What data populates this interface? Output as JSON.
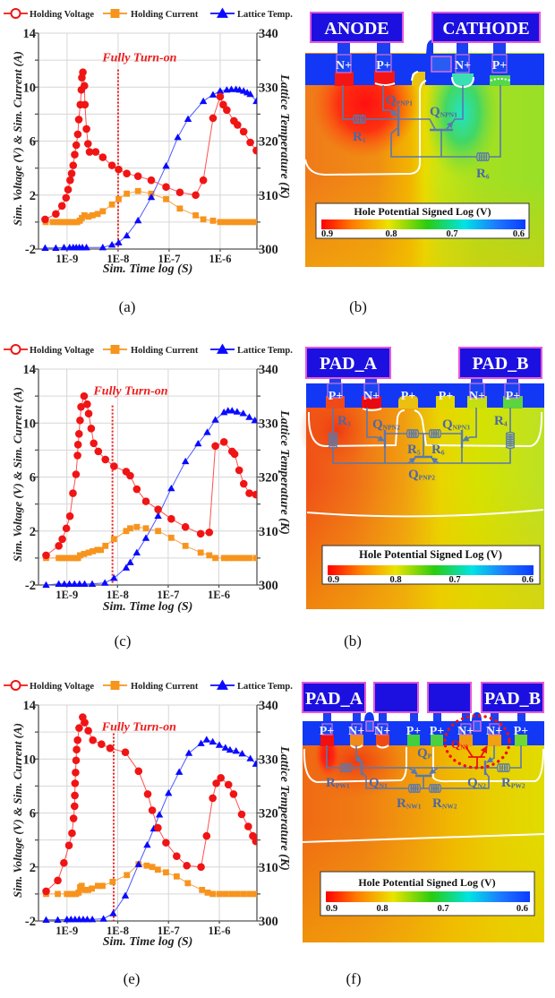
{
  "figure": {
    "captions": [
      "(a)",
      "(b)",
      "(c)",
      "(b)",
      "(e)",
      "(f)"
    ]
  },
  "chart_data": [
    {
      "panel": "a",
      "type": "line",
      "title": "",
      "xlabel": "Sim. Time log (S)",
      "ylabel": "Sim. Voltage (V) & Sim. Current (A)",
      "y2label": "Lattice Temperature (K)",
      "x_scale": "log10 seconds",
      "xlim": [
        -9.56,
        -5.28
      ],
      "xticks": [
        -9,
        -8,
        -7,
        -6
      ],
      "xtick_labels": [
        "1E-9",
        "1E-8",
        "1E-7",
        "1E-6"
      ],
      "ylim": [
        -2,
        14
      ],
      "yticks_left": [
        14,
        10,
        6,
        2,
        -2
      ],
      "y2lim": [
        300,
        340
      ],
      "yticks_right": [
        340,
        330,
        320,
        310,
        300
      ],
      "grid": true,
      "grid_step": 2,
      "legend_position": "top",
      "annotation": {
        "text": "Fully Turn-on",
        "line_x_log10": -8.0,
        "line_y_top": 11.3,
        "text_x_log10": -7.58,
        "text_y": 11.9
      },
      "series": [
        {
          "name": "Holding Voltage",
          "axis": "left",
          "marker": "circle",
          "color": "#f01414",
          "line_color": "#ff5050",
          "x": [
            -9.43,
            -9.22,
            -9.1,
            -9.02,
            -8.98,
            -8.94,
            -8.91,
            -8.88,
            -8.85,
            -8.82,
            -8.79,
            -8.77,
            -8.74,
            -8.72,
            -8.71,
            -8.69,
            -8.66,
            -8.65,
            -8.62,
            -8.59,
            -8.56,
            -8.44,
            -8.3,
            -8.12,
            -7.99,
            -7.83,
            -7.61,
            -7.35,
            -7.06,
            -6.79,
            -6.48,
            -6.33,
            -6.14,
            -6.0,
            -5.94,
            -5.87,
            -5.73,
            -5.66,
            -5.54,
            -5.41,
            -5.29
          ],
          "y": [
            0.2,
            0.6,
            1.2,
            1.8,
            2.4,
            3.1,
            3.6,
            4.2,
            5.0,
            5.7,
            6.5,
            7.6,
            8.7,
            9.8,
            10.7,
            11.1,
            10.1,
            8.7,
            6.9,
            5.8,
            5.2,
            5.2,
            4.8,
            4.2,
            3.9,
            3.6,
            3.4,
            3.1,
            2.6,
            2.2,
            2.0,
            3.1,
            7.7,
            9.3,
            8.7,
            8.3,
            7.5,
            7.2,
            6.7,
            5.9,
            5.3
          ]
        },
        {
          "name": "Holding Current",
          "axis": "left",
          "marker": "square",
          "color": "#f7941d",
          "line_color": "#f7a24a",
          "x": [
            -9.42,
            -9.28,
            -9.17,
            -9.1,
            -9.04,
            -8.98,
            -8.92,
            -8.86,
            -8.8,
            -8.75,
            -8.71,
            -8.66,
            -8.58,
            -8.5,
            -8.4,
            -8.3,
            -8.12,
            -7.99,
            -7.83,
            -7.61,
            -7.35,
            -7.06,
            -6.79,
            -6.48,
            -6.33,
            -6.14,
            -6.0,
            -5.9,
            -5.8,
            -5.7,
            -5.6,
            -5.5,
            -5.4,
            -5.29
          ],
          "y": [
            0,
            0,
            0,
            0,
            0,
            0,
            0,
            0,
            0,
            0.1,
            0.3,
            0.5,
            0.4,
            0.5,
            0.6,
            0.8,
            1.3,
            1.7,
            2.1,
            2.3,
            2.1,
            1.7,
            1.0,
            0.5,
            0.2,
            0.1,
            0,
            0,
            0,
            0,
            0,
            0,
            0,
            0
          ]
        },
        {
          "name": "Lattice Temp.",
          "axis": "right",
          "marker": "triangle",
          "color": "#0a0aff",
          "line_color": "#4a58ff",
          "x": [
            -9.43,
            -9.22,
            -9.06,
            -8.95,
            -8.88,
            -8.82,
            -8.76,
            -8.7,
            -8.62,
            -8.3,
            -8.12,
            -7.99,
            -7.83,
            -7.61,
            -7.35,
            -7.06,
            -6.83,
            -6.63,
            -6.33,
            -6.14,
            -6.0,
            -5.87,
            -5.78,
            -5.69,
            -5.62,
            -5.54,
            -5.47,
            -5.41,
            -5.29
          ],
          "y": [
            300.2,
            300.2,
            300.3,
            300.3,
            300.3,
            300.3,
            300.3,
            300.3,
            300.3,
            300.3,
            300.8,
            301.2,
            302.5,
            305.3,
            309.6,
            315.4,
            320.7,
            324.1,
            327.4,
            328.6,
            329.3,
            329.5,
            329.6,
            329.6,
            329.5,
            329.3,
            329.0,
            328.7,
            327.4
          ]
        }
      ]
    },
    {
      "panel": "c",
      "type": "line",
      "title": "",
      "xlabel": "Sim. Time log (S)",
      "ylabel": "Sim. Voltage (V) & Sim. Current (A)",
      "y2label": "Lattice Temperature (K)",
      "x_scale": "log10 seconds",
      "xlim": [
        -9.56,
        -5.25
      ],
      "xticks": [
        -9,
        -8,
        -7,
        -6
      ],
      "xtick_labels": [
        "1E-9",
        "1E-8",
        "1E-7",
        "1E-6"
      ],
      "ylim": [
        -2,
        14
      ],
      "yticks_left": [
        14,
        10,
        6,
        2,
        -2
      ],
      "y2lim": [
        300,
        340
      ],
      "yticks_right": [
        340,
        330,
        320,
        310,
        300
      ],
      "grid": true,
      "grid_step": 2,
      "legend_position": "top",
      "annotation": {
        "text": "Fully Turn-on",
        "line_x_log10": -8.1,
        "line_y_top": 11.3,
        "text_x_log10": -7.74,
        "text_y": 12.1
      },
      "series": [
        {
          "name": "Holding Voltage",
          "axis": "left",
          "marker": "circle",
          "color": "#f01414",
          "line_color": "#ff5050",
          "x": [
            -9.41,
            -9.16,
            -9.09,
            -9.01,
            -8.94,
            -8.88,
            -8.82,
            -8.79,
            -8.78,
            -8.76,
            -8.74,
            -8.72,
            -8.66,
            -8.6,
            -8.57,
            -8.52,
            -8.47,
            -8.38,
            -8.24,
            -8.07,
            -7.83,
            -7.75,
            -7.62,
            -7.44,
            -7.2,
            -6.94,
            -6.66,
            -6.36,
            -6.19,
            -6.07,
            -5.9,
            -5.74,
            -5.69,
            -5.6,
            -5.51,
            -5.4,
            -5.27
          ],
          "y": [
            0.2,
            0.9,
            1.4,
            2.2,
            3.1,
            4.8,
            6.2,
            7.6,
            8.4,
            9.2,
            10.2,
            11.2,
            12.0,
            11.4,
            10.7,
            9.6,
            8.5,
            7.9,
            7.3,
            6.8,
            6.4,
            6.1,
            5.1,
            4.2,
            3.6,
            2.9,
            2.3,
            1.8,
            1.9,
            8.3,
            8.6,
            7.9,
            7.7,
            6.5,
            5.5,
            4.8,
            4.7
          ]
        },
        {
          "name": "Holding Current",
          "axis": "left",
          "marker": "square",
          "color": "#f7941d",
          "line_color": "#f7a24a",
          "x": [
            -9.41,
            -9.16,
            -9.09,
            -9.02,
            -8.95,
            -8.88,
            -8.82,
            -8.78,
            -8.74,
            -8.66,
            -8.57,
            -8.49,
            -8.4,
            -8.33,
            -8.24,
            -8.07,
            -7.83,
            -7.75,
            -7.62,
            -7.44,
            -7.2,
            -6.94,
            -6.66,
            -6.36,
            -6.19,
            -6.07,
            -5.9,
            -5.8,
            -5.7,
            -5.6,
            -5.5,
            -5.4,
            -5.27
          ],
          "y": [
            0,
            0,
            0,
            0,
            0,
            0,
            0,
            0,
            0.2,
            0.3,
            0.4,
            0.5,
            0.6,
            0.6,
            0.9,
            1.4,
            2.0,
            2.2,
            2.3,
            2.2,
            2.0,
            1.5,
            0.9,
            0.4,
            0.2,
            0,
            0,
            0,
            0,
            0,
            0,
            0,
            0
          ]
        },
        {
          "name": "Lattice Temp.",
          "axis": "right",
          "marker": "triangle",
          "color": "#0a0aff",
          "line_color": "#4a58ff",
          "x": [
            -9.41,
            -9.16,
            -9.05,
            -8.95,
            -8.85,
            -8.75,
            -8.65,
            -8.5,
            -8.25,
            -8.07,
            -7.83,
            -7.75,
            -7.62,
            -7.44,
            -7.2,
            -6.94,
            -6.66,
            -6.41,
            -6.23,
            -6.07,
            -5.9,
            -5.82,
            -5.74,
            -5.64,
            -5.52,
            -5.4,
            -5.29
          ],
          "y": [
            300.0,
            300.2,
            300.2,
            300.2,
            300.2,
            300.2,
            300.2,
            300.2,
            300.4,
            301.3,
            303.2,
            304.2,
            306.0,
            308.7,
            312.8,
            317.9,
            322.9,
            326.2,
            328.3,
            330.6,
            332.0,
            332.3,
            332.3,
            332.1,
            331.8,
            331.1,
            330.5
          ]
        }
      ]
    },
    {
      "panel": "e",
      "type": "line",
      "title": "",
      "xlabel": "Sim. Time log (S)",
      "ylabel": "Sim. Voltage (V) & Sim. Current (A)",
      "y2label": "Lattice Temperature (K)",
      "x_scale": "log10 seconds",
      "xlim": [
        -9.56,
        -5.26
      ],
      "xticks": [
        -9,
        -8,
        -7,
        -6
      ],
      "xtick_labels": [
        "1E-9",
        "1E-8",
        "1E-7",
        "1E-6"
      ],
      "ylim": [
        -2,
        14
      ],
      "yticks_left": [
        14,
        10,
        6,
        2,
        -2
      ],
      "y2lim": [
        300,
        340
      ],
      "yticks_right": [
        340,
        330,
        320,
        310,
        300
      ],
      "grid": true,
      "grid_step": 2,
      "legend_position": "top",
      "annotation": {
        "text": "Fully Turn-on",
        "line_x_log10": -8.08,
        "line_y_top": 11.9,
        "text_x_log10": -7.58,
        "text_y": 12.1
      },
      "series": [
        {
          "name": "Holding Voltage",
          "axis": "left",
          "marker": "circle",
          "color": "#f01414",
          "line_color": "#ff5050",
          "x": [
            -9.41,
            -9.18,
            -9.06,
            -8.96,
            -8.9,
            -8.87,
            -8.85,
            -8.845,
            -8.84,
            -8.83,
            -8.82,
            -8.81,
            -8.79,
            -8.76,
            -8.69,
            -8.65,
            -8.58,
            -8.49,
            -8.32,
            -8.15,
            -7.85,
            -7.59,
            -7.41,
            -7.32,
            -7.21,
            -7.05,
            -6.84,
            -6.64,
            -6.36,
            -6.25,
            -6.13,
            -6.06,
            -5.97,
            -5.82,
            -5.72,
            -5.56,
            -5.43,
            -5.34,
            -5.28
          ],
          "y": [
            0.2,
            1.0,
            2.3,
            3.6,
            4.5,
            5.6,
            6.5,
            7.3,
            8.2,
            9.0,
            9.9,
            10.7,
            11.4,
            12.3,
            13.1,
            12.7,
            12.1,
            11.4,
            11.1,
            10.8,
            10.5,
            9.1,
            7.4,
            6.2,
            4.9,
            3.8,
            2.8,
            2.1,
            2.0,
            4.3,
            7.1,
            8.2,
            8.6,
            8.1,
            7.4,
            5.9,
            5.0,
            4.3,
            3.9
          ]
        },
        {
          "name": "Holding Current",
          "axis": "left",
          "marker": "square",
          "color": "#f7941d",
          "line_color": "#f7a24a",
          "x": [
            -9.41,
            -9.18,
            -9.0,
            -8.94,
            -8.88,
            -8.82,
            -8.77,
            -8.74,
            -8.71,
            -8.65,
            -8.58,
            -8.51,
            -8.39,
            -8.3,
            -8.1,
            -7.82,
            -7.59,
            -7.43,
            -7.32,
            -7.21,
            -7.05,
            -6.84,
            -6.62,
            -6.34,
            -6.23,
            -6.13,
            -6.0,
            -5.88,
            -5.76,
            -5.64,
            -5.52,
            -5.4,
            -5.28
          ],
          "y": [
            0,
            0,
            0,
            0,
            0,
            0,
            0.1,
            0.5,
            0.6,
            0.3,
            0.3,
            0.4,
            0.6,
            0.6,
            0.9,
            1.4,
            2.2,
            2.1,
            2.0,
            1.8,
            1.6,
            1.3,
            0.8,
            0.3,
            0.1,
            0,
            0,
            0,
            0,
            0,
            0,
            0,
            0
          ]
        },
        {
          "name": "Lattice Temp.",
          "axis": "right",
          "marker": "triangle",
          "color": "#0a0aff",
          "line_color": "#4a58ff",
          "x": [
            -9.41,
            -9.18,
            -9.0,
            -8.92,
            -8.84,
            -8.76,
            -8.68,
            -8.6,
            -8.5,
            -8.28,
            -8.09,
            -7.85,
            -7.59,
            -7.42,
            -7.29,
            -7.18,
            -7.0,
            -6.79,
            -6.6,
            -6.36,
            -6.25,
            -6.13,
            -6.0,
            -5.88,
            -5.79,
            -5.67,
            -5.55,
            -5.39,
            -5.28
          ],
          "y": [
            300.2,
            300.2,
            300.3,
            300.3,
            300.3,
            300.3,
            300.3,
            300.3,
            300.3,
            300.4,
            301.4,
            304.7,
            310.5,
            314.1,
            317.1,
            319.7,
            323.7,
            327.6,
            331.1,
            332.9,
            333.6,
            333.2,
            332.6,
            332.1,
            331.7,
            331.5,
            331.0,
            330.1,
            329.1
          ]
        }
      ]
    }
  ],
  "diagrams": [
    {
      "pads": [
        "ANODE",
        "CATHODE"
      ],
      "contacts": [
        "N+",
        "P+",
        "N+",
        "P+"
      ],
      "transistors": [
        {
          "symbol": "Q",
          "subscript": "PNP1"
        },
        {
          "symbol": "Q",
          "subscript": "NPN1"
        }
      ],
      "resistors": [
        {
          "symbol": "R",
          "subscript": "1"
        },
        {
          "symbol": "R",
          "subscript": "6"
        }
      ],
      "colorbar": {
        "title": "Hole Potential Signed Log (V)",
        "ticks": [
          "0.9",
          "0.8",
          "0.7",
          "0.6"
        ]
      }
    },
    {
      "pads": [
        "PAD_A",
        "PAD_B"
      ],
      "contacts": [
        "P+",
        "N+",
        "P+",
        "P+",
        "N+",
        "P+"
      ],
      "transistors": [
        {
          "symbol": "Q",
          "subscript": "NPN2"
        },
        {
          "symbol": "Q",
          "subscript": "NPN3"
        },
        {
          "symbol": "Q",
          "subscript": "PNP2"
        }
      ],
      "resistors": [
        {
          "symbol": "R",
          "subscript": "3"
        },
        {
          "symbol": "R",
          "subscript": "4"
        },
        {
          "symbol": "R",
          "subscript": "5"
        },
        {
          "symbol": "R",
          "subscript": "6"
        }
      ],
      "colorbar": {
        "title": "Hole  Potential Signed Log (V)",
        "ticks": [
          "0.9",
          "0.8",
          "0.7",
          "0.6"
        ]
      }
    },
    {
      "pads": [
        "PAD_A",
        "PAD_B"
      ],
      "contacts": [
        "P+",
        "N+",
        "N+",
        "P+",
        "P+",
        "N+",
        "N+",
        "P+"
      ],
      "transistors": [
        {
          "symbol": "Q",
          "subscript": "N1"
        },
        {
          "symbol": "Q",
          "subscript": "P"
        },
        {
          "symbol": "Q",
          "subscript": "N2"
        },
        {
          "symbol": "Q",
          "subscript": "N3",
          "highlighted": true
        }
      ],
      "resistors": [
        {
          "symbol": "R",
          "subscript": "PW1"
        },
        {
          "symbol": "R",
          "subscript": "PW2"
        },
        {
          "symbol": "R",
          "subscript": "NW1"
        },
        {
          "symbol": "R",
          "subscript": "NW2"
        }
      ],
      "colorbar": {
        "title": "Hole Potential Signed Log (V)",
        "ticks": [
          "0.9",
          "0.8",
          "0.7",
          "0.6"
        ]
      }
    }
  ],
  "colormap": [
    "#ff0000",
    "#ff7a00",
    "#ece400",
    "#28cc10",
    "#00e4e4",
    "#1e78ff",
    "#0a3cff"
  ],
  "colors": {
    "pad_fill": "#1c10e0",
    "pad_border": "#e658d8",
    "oxide": "#1238f5",
    "circuit": "#5878b0",
    "highlight": "#ee1111",
    "annotation": "#ee1c1c"
  }
}
